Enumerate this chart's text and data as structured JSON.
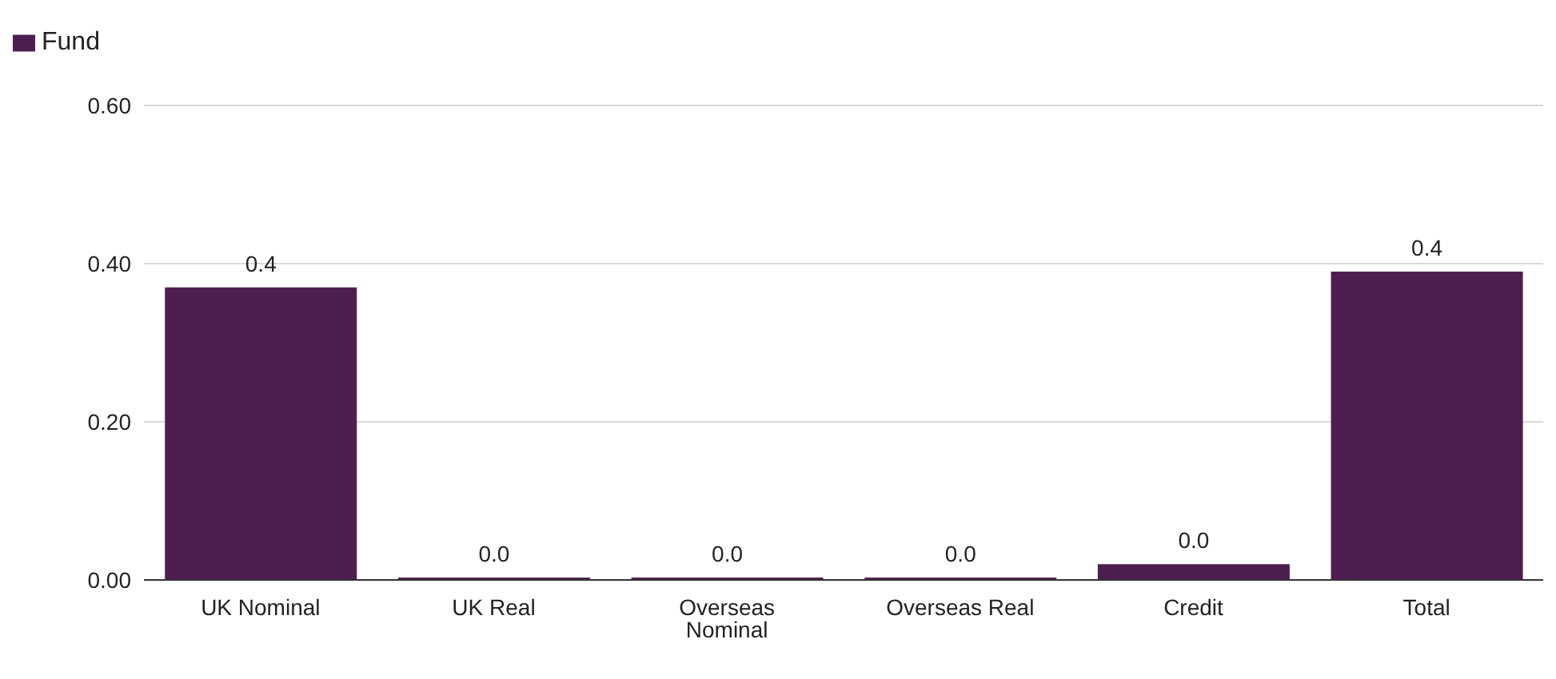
{
  "chart_data": {
    "type": "bar",
    "categories": [
      "UK Nominal",
      "UK Real",
      "Overseas Nominal",
      "Overseas Real",
      "Credit",
      "Total"
    ],
    "series": [
      {
        "name": "Fund",
        "color": "#4e1e50",
        "values": [
          0.37,
          0.003,
          0.003,
          0.003,
          0.02,
          0.39
        ],
        "value_labels": [
          "0.4",
          "0.0",
          "0.0",
          "0.0",
          "0.0",
          "0.4"
        ]
      }
    ],
    "ylim": [
      0,
      0.6
    ],
    "yticks": [
      {
        "value": 0,
        "label": "0.00"
      },
      {
        "value": 0.2,
        "label": "0.20"
      },
      {
        "value": 0.4,
        "label": "0.40"
      },
      {
        "value": 0.6,
        "label": "0.60"
      }
    ],
    "grid": "y",
    "legend": "top left"
  }
}
